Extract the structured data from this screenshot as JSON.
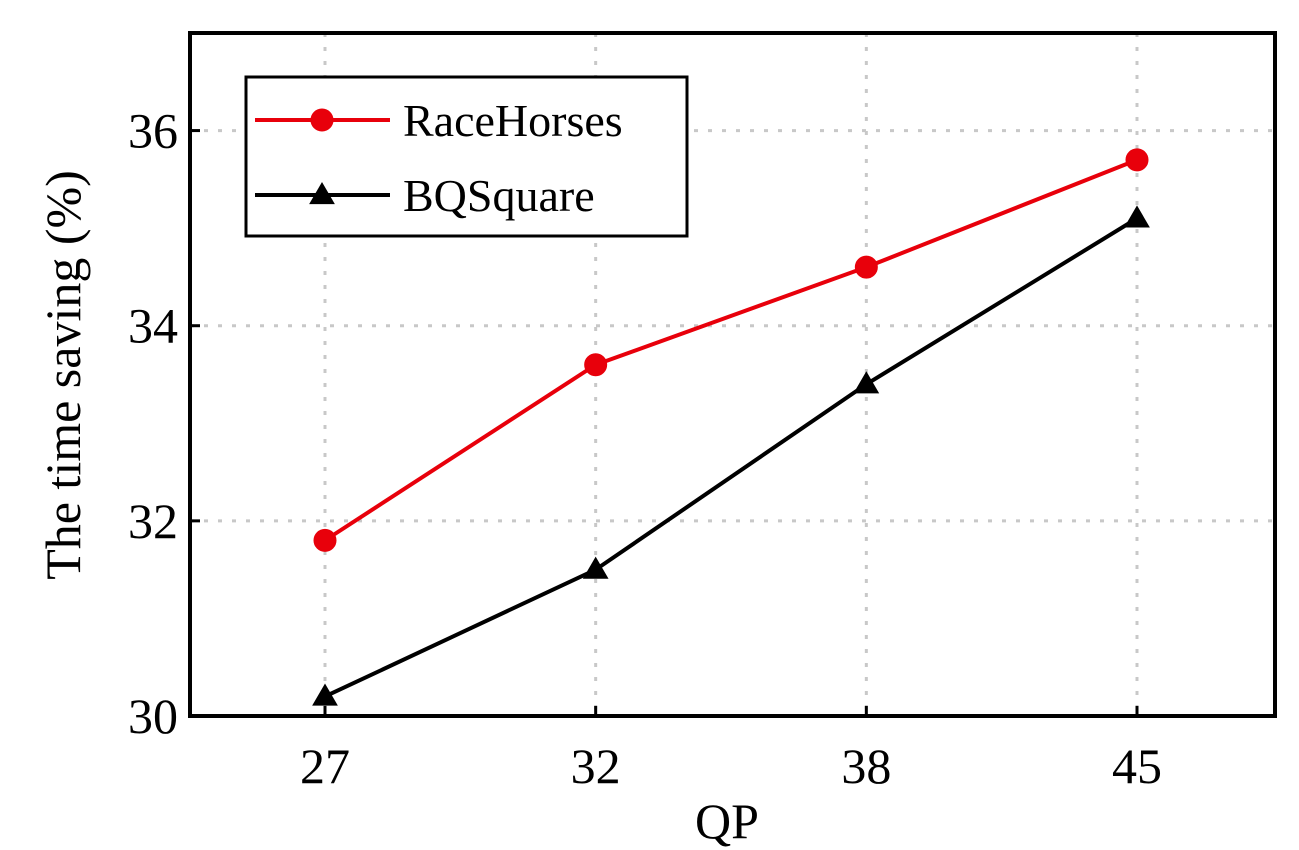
{
  "chart_data": {
    "type": "line",
    "title": "",
    "xlabel": "QP",
    "ylabel": "The time saving (%)",
    "categories": [
      "27",
      "32",
      "38",
      "45"
    ],
    "ylim": [
      30,
      37
    ],
    "yticks": [
      30,
      32,
      34,
      36
    ],
    "grid": true,
    "grid_style": "dotted",
    "legend_position": "top-left",
    "series": [
      {
        "name": "RaceHorses",
        "values": [
          31.8,
          33.6,
          34.6,
          35.7
        ],
        "color": "#e8000b",
        "marker": "circle"
      },
      {
        "name": "BQSquare",
        "values": [
          30.2,
          31.5,
          33.4,
          35.1
        ],
        "color": "#000000",
        "marker": "triangle"
      }
    ]
  }
}
